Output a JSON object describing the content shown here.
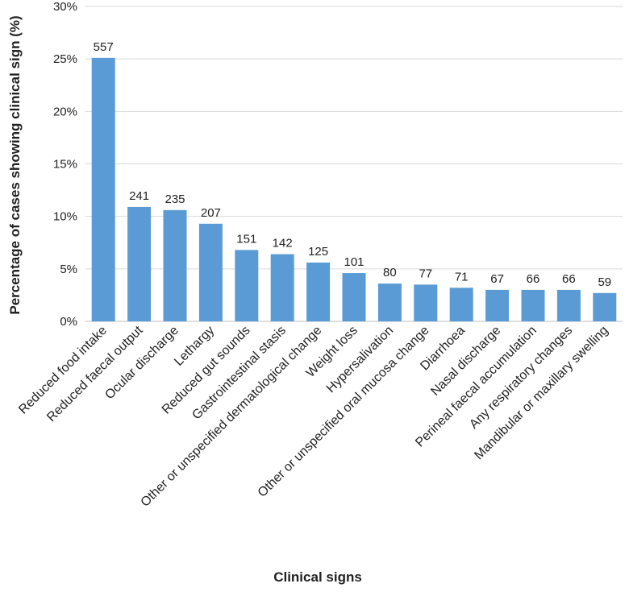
{
  "chart_data": {
    "type": "bar",
    "title": "",
    "xlabel": "Clinical signs",
    "ylabel": "Percentage of cases showing clinical sign (%)",
    "ylim": [
      0,
      30
    ],
    "yticks": [
      "0%",
      "5%",
      "10%",
      "15%",
      "20%",
      "25%",
      "30%"
    ],
    "grid": "horizontal",
    "legend": "none",
    "bar_color": "#5b9bd5",
    "categories": [
      "Reduced food intake",
      "Reduced faecal output",
      "Ocular discharge",
      "Lethargy",
      "Reduced gut sounds",
      "Gastrointestinal stasis",
      "Other or unspecified dermatological change",
      "Weight loss",
      "Hypersalivation",
      "Other or unspecified oral mucosa change",
      "Diarrhoea",
      "Nasal discharge",
      "Perineal faecal accumulation",
      "Any respiratory changes",
      "Mandibular or maxillary swelling"
    ],
    "values": [
      25.1,
      10.9,
      10.6,
      9.3,
      6.8,
      6.4,
      5.6,
      4.6,
      3.6,
      3.5,
      3.2,
      3.0,
      3.0,
      3.0,
      2.7
    ],
    "data_labels": [
      "557",
      "241",
      "235",
      "207",
      "151",
      "142",
      "125",
      "101",
      "80",
      "77",
      "71",
      "67",
      "66",
      "66",
      "59"
    ]
  }
}
